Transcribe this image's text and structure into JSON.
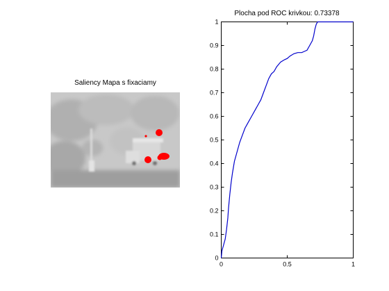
{
  "figure": {
    "left_title": "Saliency Mapa s fixaciamy",
    "right_title": "Plocha pod ROC krivkou: 0.73378"
  },
  "colors": {
    "curve": "#0000cc",
    "fixation": "#ff0000",
    "axis": "#000000"
  },
  "chart_data": [
    {
      "type": "image",
      "title": "Saliency Mapa s fixaciamy",
      "fixation_count": 5
    },
    {
      "type": "line",
      "title": "Plocha pod ROC krivkou: 0.73378",
      "xlim": [
        0,
        1
      ],
      "ylim": [
        0,
        1
      ],
      "x_ticks": [
        "0",
        "0.5",
        "1"
      ],
      "y_ticks": [
        "0",
        "0.1",
        "0.2",
        "0.3",
        "0.4",
        "0.5",
        "0.6",
        "0.7",
        "0.8",
        "0.9",
        "1"
      ],
      "grid": false,
      "series": [
        {
          "x": [
            0,
            0.005,
            0.02,
            0.03,
            0.04,
            0.05,
            0.055,
            0.065,
            0.075,
            0.085,
            0.1,
            0.12,
            0.14,
            0.16,
            0.18,
            0.2,
            0.23,
            0.26,
            0.28,
            0.3,
            0.32,
            0.34,
            0.36,
            0.38,
            0.4,
            0.42,
            0.45,
            0.48,
            0.5,
            0.52,
            0.55,
            0.58,
            0.61,
            0.63,
            0.65,
            0.67,
            0.69,
            0.7,
            0.71,
            0.72,
            0.73,
            0.735,
            0.74,
            1
          ],
          "y": [
            0,
            0.03,
            0.06,
            0.08,
            0.12,
            0.17,
            0.21,
            0.27,
            0.32,
            0.36,
            0.41,
            0.45,
            0.49,
            0.52,
            0.55,
            0.57,
            0.6,
            0.63,
            0.65,
            0.67,
            0.7,
            0.73,
            0.76,
            0.78,
            0.79,
            0.81,
            0.83,
            0.84,
            0.845,
            0.855,
            0.865,
            0.87,
            0.87,
            0.875,
            0.88,
            0.9,
            0.92,
            0.94,
            0.97,
            0.99,
            1,
            1,
            1,
            1
          ]
        }
      ]
    }
  ]
}
